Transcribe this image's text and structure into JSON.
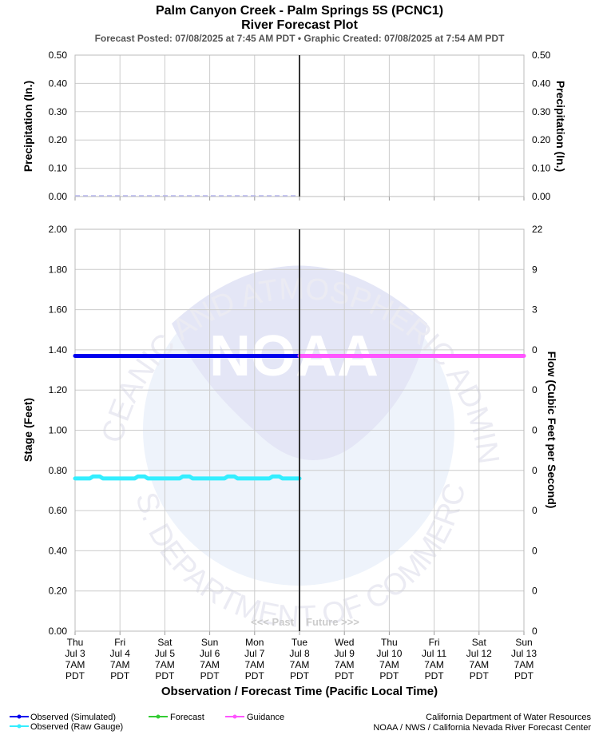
{
  "header": {
    "title_line1": "Palm Canyon Creek - Palm Springs 5S (PCNC1)",
    "title_line2": "River Forecast Plot",
    "subtitle": "Forecast Posted: 07/08/2025 at 7:45 AM PDT  •  Graphic Created: 07/08/2025 at 7:54 AM PDT"
  },
  "precip_panel": {
    "ylabel_left": "Precipitation (In.)",
    "ylabel_right": "Precipitation (In.)",
    "yticks": [
      "0.50",
      "0.40",
      "0.30",
      "0.20",
      "0.10",
      "0.00"
    ]
  },
  "stage_panel": {
    "ylabel_left": "Stage (Feet)",
    "ylabel_right": "Flow (Cubic Feet per Second)",
    "yticks_left": [
      "2.00",
      "1.80",
      "1.60",
      "1.40",
      "1.20",
      "1.00",
      "0.80",
      "0.60",
      "0.40",
      "0.20",
      "0.00"
    ],
    "yticks_right": [
      "22",
      "9",
      "3",
      "0",
      "0",
      "0",
      "0",
      "0",
      "0",
      "0",
      "0"
    ],
    "past_label": "<<< Past",
    "future_label": "Future >>>"
  },
  "x_axis": {
    "label": "Observation / Forecast Time (Pacific Local Time)",
    "ticks": [
      {
        "day": "Thu",
        "date": "Jul 3",
        "time": "7AM",
        "tz": "PDT"
      },
      {
        "day": "Fri",
        "date": "Jul 4",
        "time": "7AM",
        "tz": "PDT"
      },
      {
        "day": "Sat",
        "date": "Jul 5",
        "time": "7AM",
        "tz": "PDT"
      },
      {
        "day": "Sun",
        "date": "Jul 6",
        "time": "7AM",
        "tz": "PDT"
      },
      {
        "day": "Mon",
        "date": "Jul 7",
        "time": "7AM",
        "tz": "PDT"
      },
      {
        "day": "Tue",
        "date": "Jul 8",
        "time": "7AM",
        "tz": "PDT"
      },
      {
        "day": "Wed",
        "date": "Jul 9",
        "time": "7AM",
        "tz": "PDT"
      },
      {
        "day": "Thu",
        "date": "Jul 10",
        "time": "7AM",
        "tz": "PDT"
      },
      {
        "day": "Fri",
        "date": "Jul 11",
        "time": "7AM",
        "tz": "PDT"
      },
      {
        "day": "Sat",
        "date": "Jul 12",
        "time": "7AM",
        "tz": "PDT"
      },
      {
        "day": "Sun",
        "date": "Jul 13",
        "time": "7AM",
        "tz": "PDT"
      }
    ]
  },
  "legend": {
    "items": [
      {
        "label": "Observed (Simulated)",
        "color": "#0000ee"
      },
      {
        "label": "Observed (Raw Gauge)",
        "color": "#33eeff"
      },
      {
        "label": "Forecast",
        "color": "#33cc33"
      },
      {
        "label": "Guidance",
        "color": "#ff55ff"
      }
    ]
  },
  "credits": {
    "line1": "California Department of Water Resources",
    "line2": "NOAA / NWS / California Nevada River Forecast Center"
  },
  "watermark": {
    "logo_text": "NOAA",
    "ring_top": "NATIONAL OCEANIC AND ATMOSPHERIC ADMINISTRATION",
    "ring_bottom": "U.S. DEPARTMENT OF COMMERCE"
  },
  "colors": {
    "grid": "#cccccc",
    "now_line": "#333333",
    "precip_obs": "#b8b8ee"
  },
  "chart_data": {
    "type": "line",
    "x_start": "Jul 3 7AM PDT",
    "x_end": "Jul 13 7AM PDT",
    "now": "Jul 8 7AM PDT",
    "precip_ylim": [
      0,
      0.5
    ],
    "stage_ylim": [
      0,
      2.0
    ],
    "grid": true,
    "legend_position": "bottom-left",
    "precipitation": {
      "observed_in": 0.0,
      "observed_span_days": [
        0,
        5
      ]
    },
    "series": [
      {
        "name": "Observed (Simulated)",
        "color": "#0000ee",
        "x_days": [
          0,
          5
        ],
        "stage_ft": [
          1.37,
          1.37
        ]
      },
      {
        "name": "Guidance",
        "color": "#ff55ff",
        "x_days": [
          5,
          10
        ],
        "stage_ft": [
          1.37,
          1.37
        ]
      },
      {
        "name": "Observed (Raw Gauge)",
        "color": "#33eeff",
        "x_days": [
          0.0,
          0.33,
          0.4,
          0.55,
          0.62,
          1.33,
          1.4,
          1.55,
          1.62,
          2.33,
          2.4,
          2.55,
          2.62,
          3.33,
          3.4,
          3.55,
          3.62,
          4.33,
          4.4,
          4.55,
          4.62,
          5.0
        ],
        "stage_ft": [
          0.76,
          0.76,
          0.77,
          0.77,
          0.76,
          0.76,
          0.77,
          0.77,
          0.76,
          0.76,
          0.77,
          0.77,
          0.76,
          0.76,
          0.77,
          0.77,
          0.76,
          0.76,
          0.77,
          0.77,
          0.76,
          0.76
        ]
      }
    ]
  }
}
